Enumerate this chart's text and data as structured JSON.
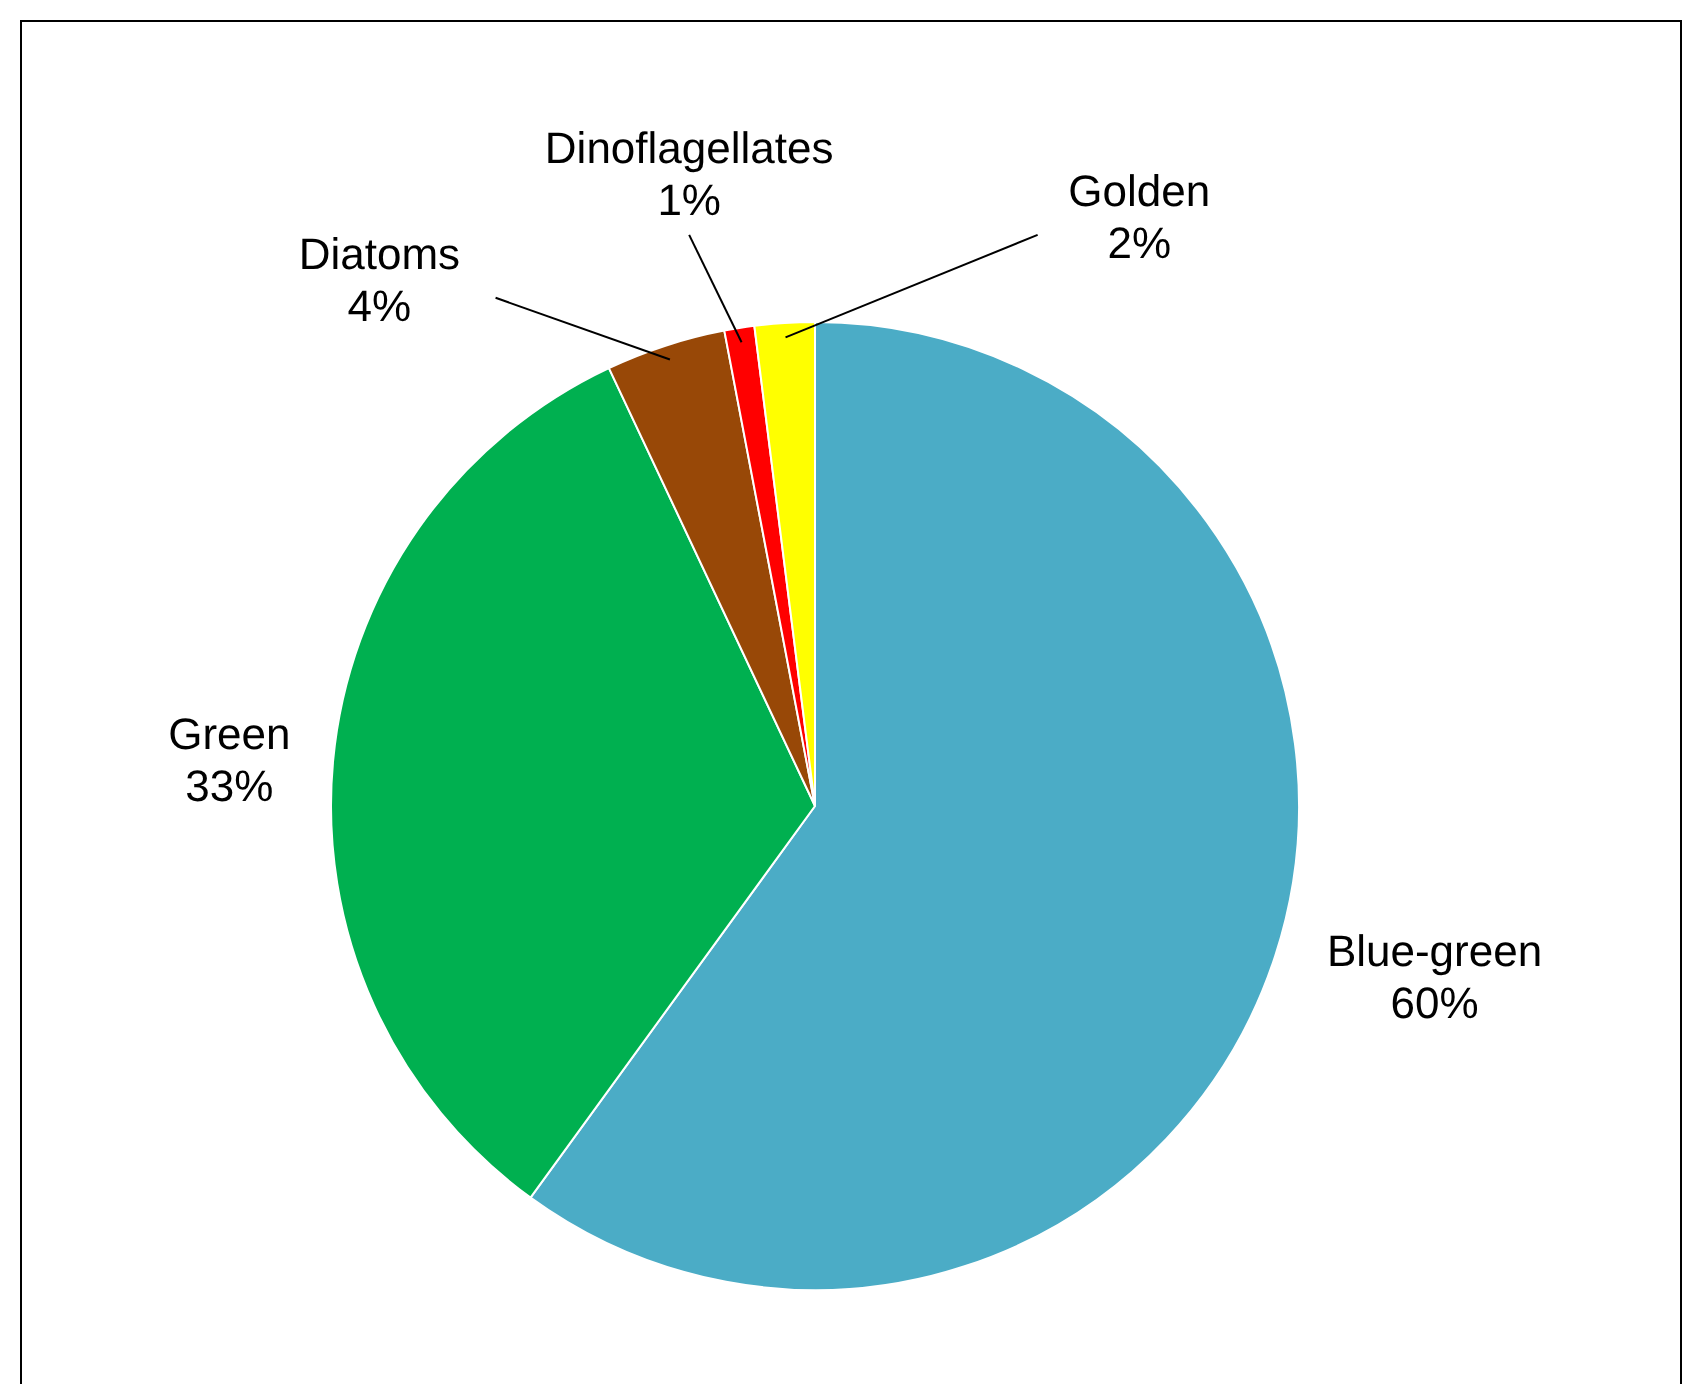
{
  "chart_data": {
    "type": "pie",
    "categories": [
      "Blue-green",
      "Green",
      "Diatoms",
      "Dinoflagellates",
      "Golden"
    ],
    "values": [
      60,
      33,
      4,
      1,
      2
    ],
    "colors": [
      "#4bacc6",
      "#00b050",
      "#984807",
      "#ff0000",
      "#ffff00"
    ],
    "value_labels": [
      "60%",
      "33%",
      "4%",
      "1%",
      "2%"
    ],
    "legend": false
  }
}
